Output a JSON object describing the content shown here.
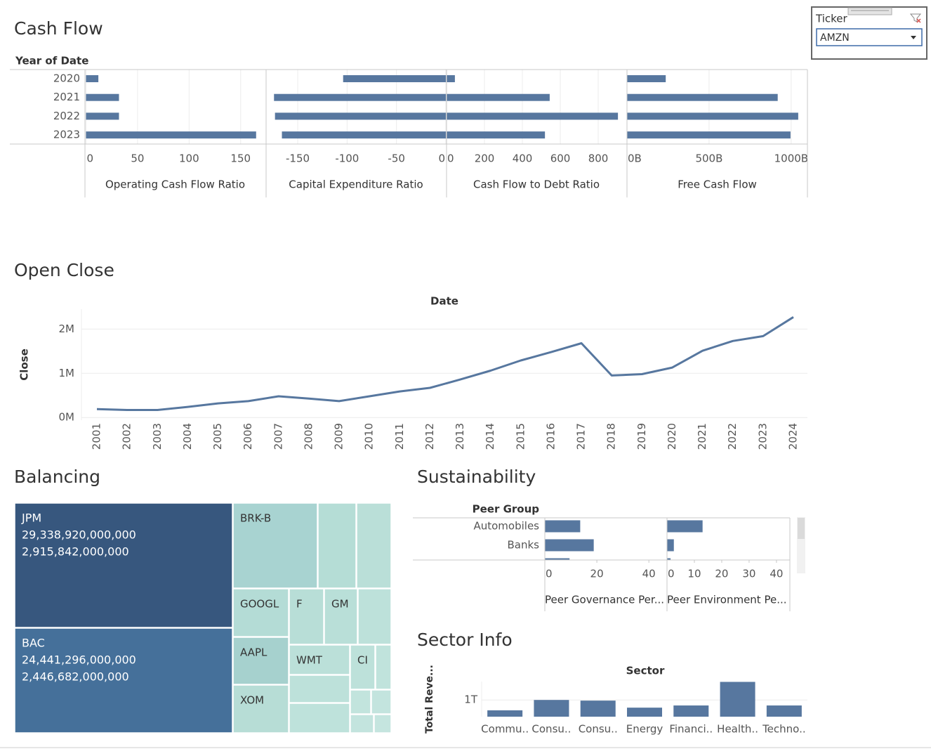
{
  "filter": {
    "label": "Ticker",
    "value": "AMZN"
  },
  "chart_data": [
    {
      "type": "bar_panels",
      "title": "Cash Flow",
      "row_label": "Year of Date",
      "categories": [
        "2020",
        "2021",
        "2022",
        "2023"
      ],
      "color": "#57779f",
      "grid": true,
      "panels": [
        {
          "name": "Operating Cash Flow Ratio",
          "values": [
            12,
            32,
            32,
            165
          ],
          "xlim": [
            -1,
            174
          ],
          "xticks": [
            0,
            50,
            100,
            150
          ]
        },
        {
          "name": "Capital Expenditure Ratio",
          "values": [
            -104,
            -174,
            -173,
            -166
          ],
          "xlim": [
            -182,
            0
          ],
          "xticks": [
            -150,
            -100,
            -50,
            0
          ]
        },
        {
          "name": "Cash Flow to Debt Ratio",
          "values": [
            44,
            544,
            904,
            519
          ],
          "xlim": [
            0,
            948
          ],
          "xticks": [
            0,
            200,
            400,
            600,
            800
          ]
        },
        {
          "name": "Free Cash Flow",
          "values": [
            236000000000,
            918000000000,
            1043000000000,
            996000000000
          ],
          "xlim": [
            0,
            1099000000000
          ],
          "xticks": [
            {
              "value": 0,
              "label": "0B"
            },
            {
              "value": 500000000000,
              "label": "500B"
            },
            {
              "value": 1000000000000,
              "label": "1000B"
            }
          ]
        }
      ]
    },
    {
      "type": "line",
      "title": "Open Close",
      "x_label": "Date",
      "y_label": "Close",
      "categories": [
        "2001",
        "2002",
        "2003",
        "2004",
        "2005",
        "2006",
        "2007",
        "2008",
        "2009",
        "2010",
        "2011",
        "2012",
        "2013",
        "2014",
        "2015",
        "2016",
        "2017",
        "2018",
        "2019",
        "2020",
        "2021",
        "2022",
        "2023",
        "2024"
      ],
      "values": [
        190000,
        170000,
        170000,
        240000,
        320000,
        370000,
        480000,
        430000,
        370000,
        480000,
        590000,
        670000,
        860000,
        1060000,
        1290000,
        1480000,
        1680000,
        950000,
        980000,
        1130000,
        1510000,
        1730000,
        1840000,
        2270000
      ],
      "color": "#57779f",
      "ylim": [
        -60000,
        2450000
      ],
      "yticks": [
        {
          "value": 0,
          "label": "0M"
        },
        {
          "value": 1000000,
          "label": "1M"
        },
        {
          "value": 2000000,
          "label": "2M"
        }
      ],
      "grid": true
    },
    {
      "type": "treemap",
      "title": "Balancing",
      "categories": [
        "JPM",
        "BAC",
        "BRK-B",
        null,
        null,
        "GOOGL",
        "F",
        "GM",
        null,
        "AAPL",
        "WMT",
        "CI",
        null,
        "XOM",
        null,
        null,
        null,
        null,
        null,
        null
      ],
      "values": [
        29338920000000,
        24441296000000,
        7700000000000,
        3500000000000,
        3100000000000,
        2800000000000,
        2100000000000,
        2000000000000,
        2000000000000,
        2800000000000,
        1900000000000,
        1200000000000,
        730000000000,
        2800000000000,
        1800000000000,
        1900000000000,
        520000000000,
        500000000000,
        450000000000,
        330000000000
      ],
      "value_labels": [
        "29,338,920,000,000",
        "24,441,296,000,000",
        null,
        null,
        null,
        null,
        null,
        null,
        null,
        null,
        null,
        null,
        null,
        null,
        null,
        null,
        null,
        null,
        null,
        null
      ],
      "secondary_values": [
        2915842000000,
        2446682000000,
        null,
        null,
        null,
        null,
        null,
        null,
        null,
        null,
        null,
        null,
        null,
        null,
        null,
        null,
        null,
        null,
        null,
        null
      ],
      "secondary_labels": [
        "2,915,842,000,000",
        "2,446,682,000,000",
        null,
        null,
        null,
        null,
        null,
        null,
        null,
        null,
        null,
        null,
        null,
        null,
        null,
        null,
        null,
        null,
        null,
        null
      ],
      "colors": [
        "#37577e",
        "#45709a",
        "#a8d3d1",
        "#b5ddd6",
        "#badfd8",
        "#b4dcd6",
        "#b8ded7",
        "#b9dfd8",
        "#bde1da",
        "#a6d1ce",
        "#bbe0d9",
        "#bde1da",
        "#c0e3dc",
        "#b7ddd6",
        "#bde1da",
        "#bee2db",
        "#c2e4dd",
        "#c3e4de",
        "#c3e4de",
        "#c5e5df"
      ]
    },
    {
      "type": "bar_panels",
      "title": "Sustainability",
      "row_label": "Peer Group",
      "categories": [
        "Automobiles",
        "Banks",
        null
      ],
      "color": "#57779f",
      "grid": false,
      "panels": [
        {
          "name": "Peer Governance Per...",
          "values": [
            13.6,
            18.8,
            9.5
          ],
          "xlim": [
            0,
            46.7
          ],
          "xticks": [
            0,
            20,
            40
          ]
        },
        {
          "name": "Peer Environment Pe...",
          "values": [
            13,
            2.5,
            1.3
          ],
          "xlim": [
            0,
            44.9
          ],
          "xticks": [
            0,
            10,
            20,
            30,
            40
          ]
        }
      ]
    },
    {
      "type": "bar",
      "title": "Sector Info",
      "x_label": "Sector",
      "y_label": "Total Reve...",
      "categories": [
        "Commu..",
        "Consu..",
        "Consu..",
        "Energy",
        "Financi..",
        "Health..",
        "Techno.."
      ],
      "values": [
        380000000000,
        1000000000000,
        960000000000,
        540000000000,
        670000000000,
        2080000000000,
        670000000000
      ],
      "color": "#57779f",
      "ylim": [
        0,
        2100000000000
      ],
      "yticks": [
        {
          "value": 1000000000000,
          "label": "1T"
        }
      ],
      "grid": true
    }
  ]
}
